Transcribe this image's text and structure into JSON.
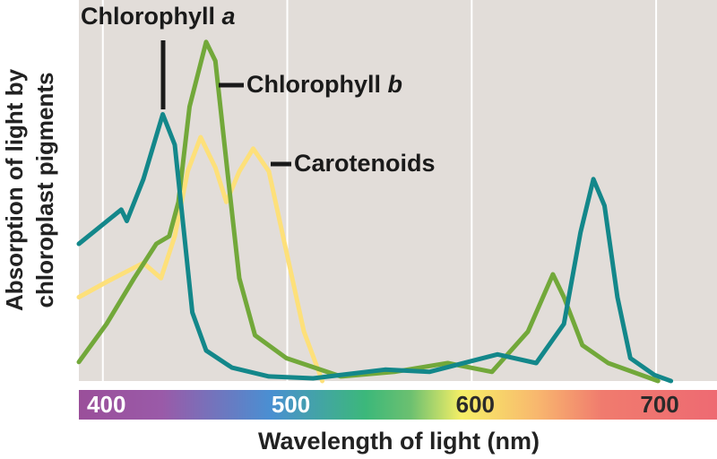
{
  "chart_data": {
    "type": "line",
    "y_label": [
      "Absorption of light by",
      "chloroplast pigments"
    ],
    "x_label": "Wavelength of light (nm)",
    "xlim": [
      387,
      733
    ],
    "xticks": [
      400,
      500,
      600,
      700
    ],
    "ylim": [
      0,
      1
    ],
    "grid": true,
    "series": [
      {
        "name": "Chlorophyll a",
        "color": "#13878a",
        "x": [
          387,
          410,
          413,
          422,
          432.5,
          439,
          444,
          448.5,
          456,
          470,
          490,
          514,
          553,
          577,
          614,
          635,
          650,
          659,
          666,
          672,
          679,
          686,
          699,
          708
        ],
        "values": [
          0.36,
          0.45,
          0.42,
          0.53,
          0.7,
          0.62,
          0.39,
          0.18,
          0.08,
          0.035,
          0.012,
          0.007,
          0.03,
          0.024,
          0.07,
          0.047,
          0.15,
          0.39,
          0.53,
          0.46,
          0.22,
          0.06,
          0.016,
          0
        ]
      },
      {
        "name": "Chlorophyll b",
        "color": "#72a83a",
        "x": [
          387,
          402,
          417,
          429,
          436,
          441,
          447,
          456,
          461,
          468,
          474,
          482.5,
          499.5,
          529,
          558,
          587,
          611,
          630.5,
          644,
          650,
          660,
          674,
          701
        ],
        "values": [
          0.05,
          0.15,
          0.27,
          0.36,
          0.38,
          0.47,
          0.72,
          0.89,
          0.84,
          0.53,
          0.27,
          0.12,
          0.06,
          0.012,
          0.024,
          0.047,
          0.024,
          0.13,
          0.28,
          0.22,
          0.094,
          0.047,
          0
        ]
      },
      {
        "name": "Carotenoids",
        "color": "#fde07a",
        "x": [
          387,
          402,
          422,
          431.5,
          439,
          446,
          453,
          461,
          467,
          474,
          481.5,
          490,
          499.5,
          509,
          519
        ],
        "values": [
          0.22,
          0.26,
          0.31,
          0.27,
          0.38,
          0.55,
          0.64,
          0.56,
          0.47,
          0.55,
          0.61,
          0.55,
          0.34,
          0.13,
          0
        ]
      }
    ]
  }
}
